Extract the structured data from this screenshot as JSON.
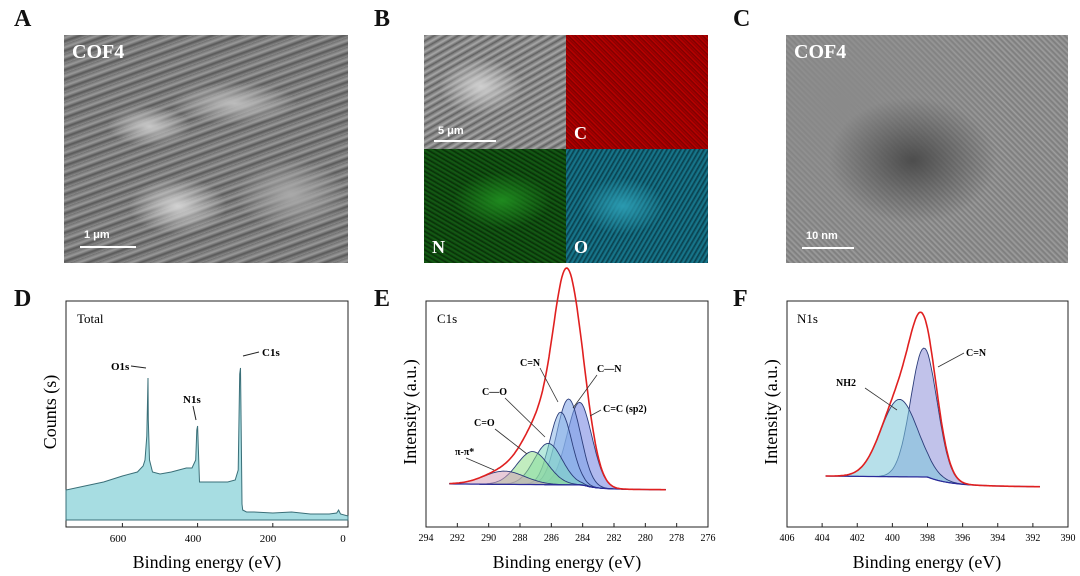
{
  "panels": {
    "A": {
      "label": "A",
      "title": "COF4",
      "scale": "1 μm"
    },
    "B": {
      "label": "B",
      "scale": "5 μm",
      "map_c": "C",
      "map_n": "N",
      "map_o": "O"
    },
    "C": {
      "label": "C",
      "title": "COF4",
      "scale": "10 nm"
    },
    "D": {
      "label": "D"
    },
    "E": {
      "label": "E"
    },
    "F": {
      "label": "F"
    }
  },
  "colors": {
    "fill": "#a7dde2",
    "envelope": "#e02020",
    "c_sp2": "#6f7fe0",
    "c_n": "#7ea3e8",
    "c_eq_n": "#8ab7e8",
    "c_o": "#7fd8c2",
    "c_eq_o": "#8fdf8a",
    "pi": "#d4a0b8"
  },
  "chart_data": [
    {
      "type": "area",
      "title": "Total",
      "xlabel": "Binding energy (eV)",
      "ylabel": "Counts (s)",
      "xlim": [
        750,
        0
      ],
      "xticks": [
        "600",
        "400",
        "200",
        "0"
      ],
      "x": [
        750,
        700,
        650,
        600,
        560,
        545,
        540,
        535,
        532,
        531,
        528,
        520,
        500,
        470,
        450,
        430,
        415,
        405,
        402,
        400,
        398,
        395,
        380,
        350,
        320,
        300,
        292,
        288,
        286,
        284,
        282,
        280,
        270,
        250,
        200,
        150,
        100,
        50,
        30,
        25,
        20,
        0
      ],
      "y": [
        0.15,
        0.17,
        0.19,
        0.22,
        0.24,
        0.27,
        0.3,
        0.42,
        0.71,
        0.5,
        0.3,
        0.24,
        0.23,
        0.24,
        0.25,
        0.26,
        0.26,
        0.3,
        0.45,
        0.47,
        0.35,
        0.19,
        0.19,
        0.19,
        0.19,
        0.2,
        0.25,
        0.73,
        0.76,
        0.45,
        0.08,
        0.05,
        0.04,
        0.04,
        0.035,
        0.04,
        0.03,
        0.03,
        0.035,
        0.05,
        0.03,
        0.02
      ],
      "annotations": [
        "O1s",
        "N1s",
        "C1s"
      ]
    },
    {
      "type": "line",
      "title": "C1s",
      "xlabel": "Binding energy (eV)",
      "ylabel": "Intensity (a.u.)",
      "xlim": [
        294,
        276
      ],
      "xticks": [
        "294",
        "292",
        "290",
        "288",
        "286",
        "284",
        "282",
        "280",
        "278",
        "276"
      ],
      "series": [
        {
          "name": "C=C (sp2)",
          "center": 284.2,
          "height": 0.5,
          "width": 0.8
        },
        {
          "name": "C—N",
          "center": 284.9,
          "height": 0.52,
          "width": 0.75
        },
        {
          "name": "C=N",
          "center": 285.4,
          "height": 0.44,
          "width": 0.7
        },
        {
          "name": "C—O",
          "center": 286.2,
          "height": 0.25,
          "width": 0.9
        },
        {
          "name": "C=O",
          "center": 287.2,
          "height": 0.2,
          "width": 1.0
        },
        {
          "name": "π-π*",
          "center": 289.0,
          "height": 0.08,
          "width": 1.3
        }
      ]
    },
    {
      "type": "line",
      "title": "N1s",
      "xlabel": "Binding energy (eV)",
      "ylabel": "Intensity (a.u.)",
      "xlim": [
        406,
        390
      ],
      "xticks": [
        "406",
        "404",
        "402",
        "400",
        "398",
        "396",
        "394",
        "392",
        "390"
      ],
      "series": [
        {
          "name": "C=N",
          "center": 398.2,
          "height": 0.6,
          "width": 0.75
        },
        {
          "name": "NH2",
          "center": 399.6,
          "height": 0.36,
          "width": 1.05
        }
      ]
    }
  ]
}
